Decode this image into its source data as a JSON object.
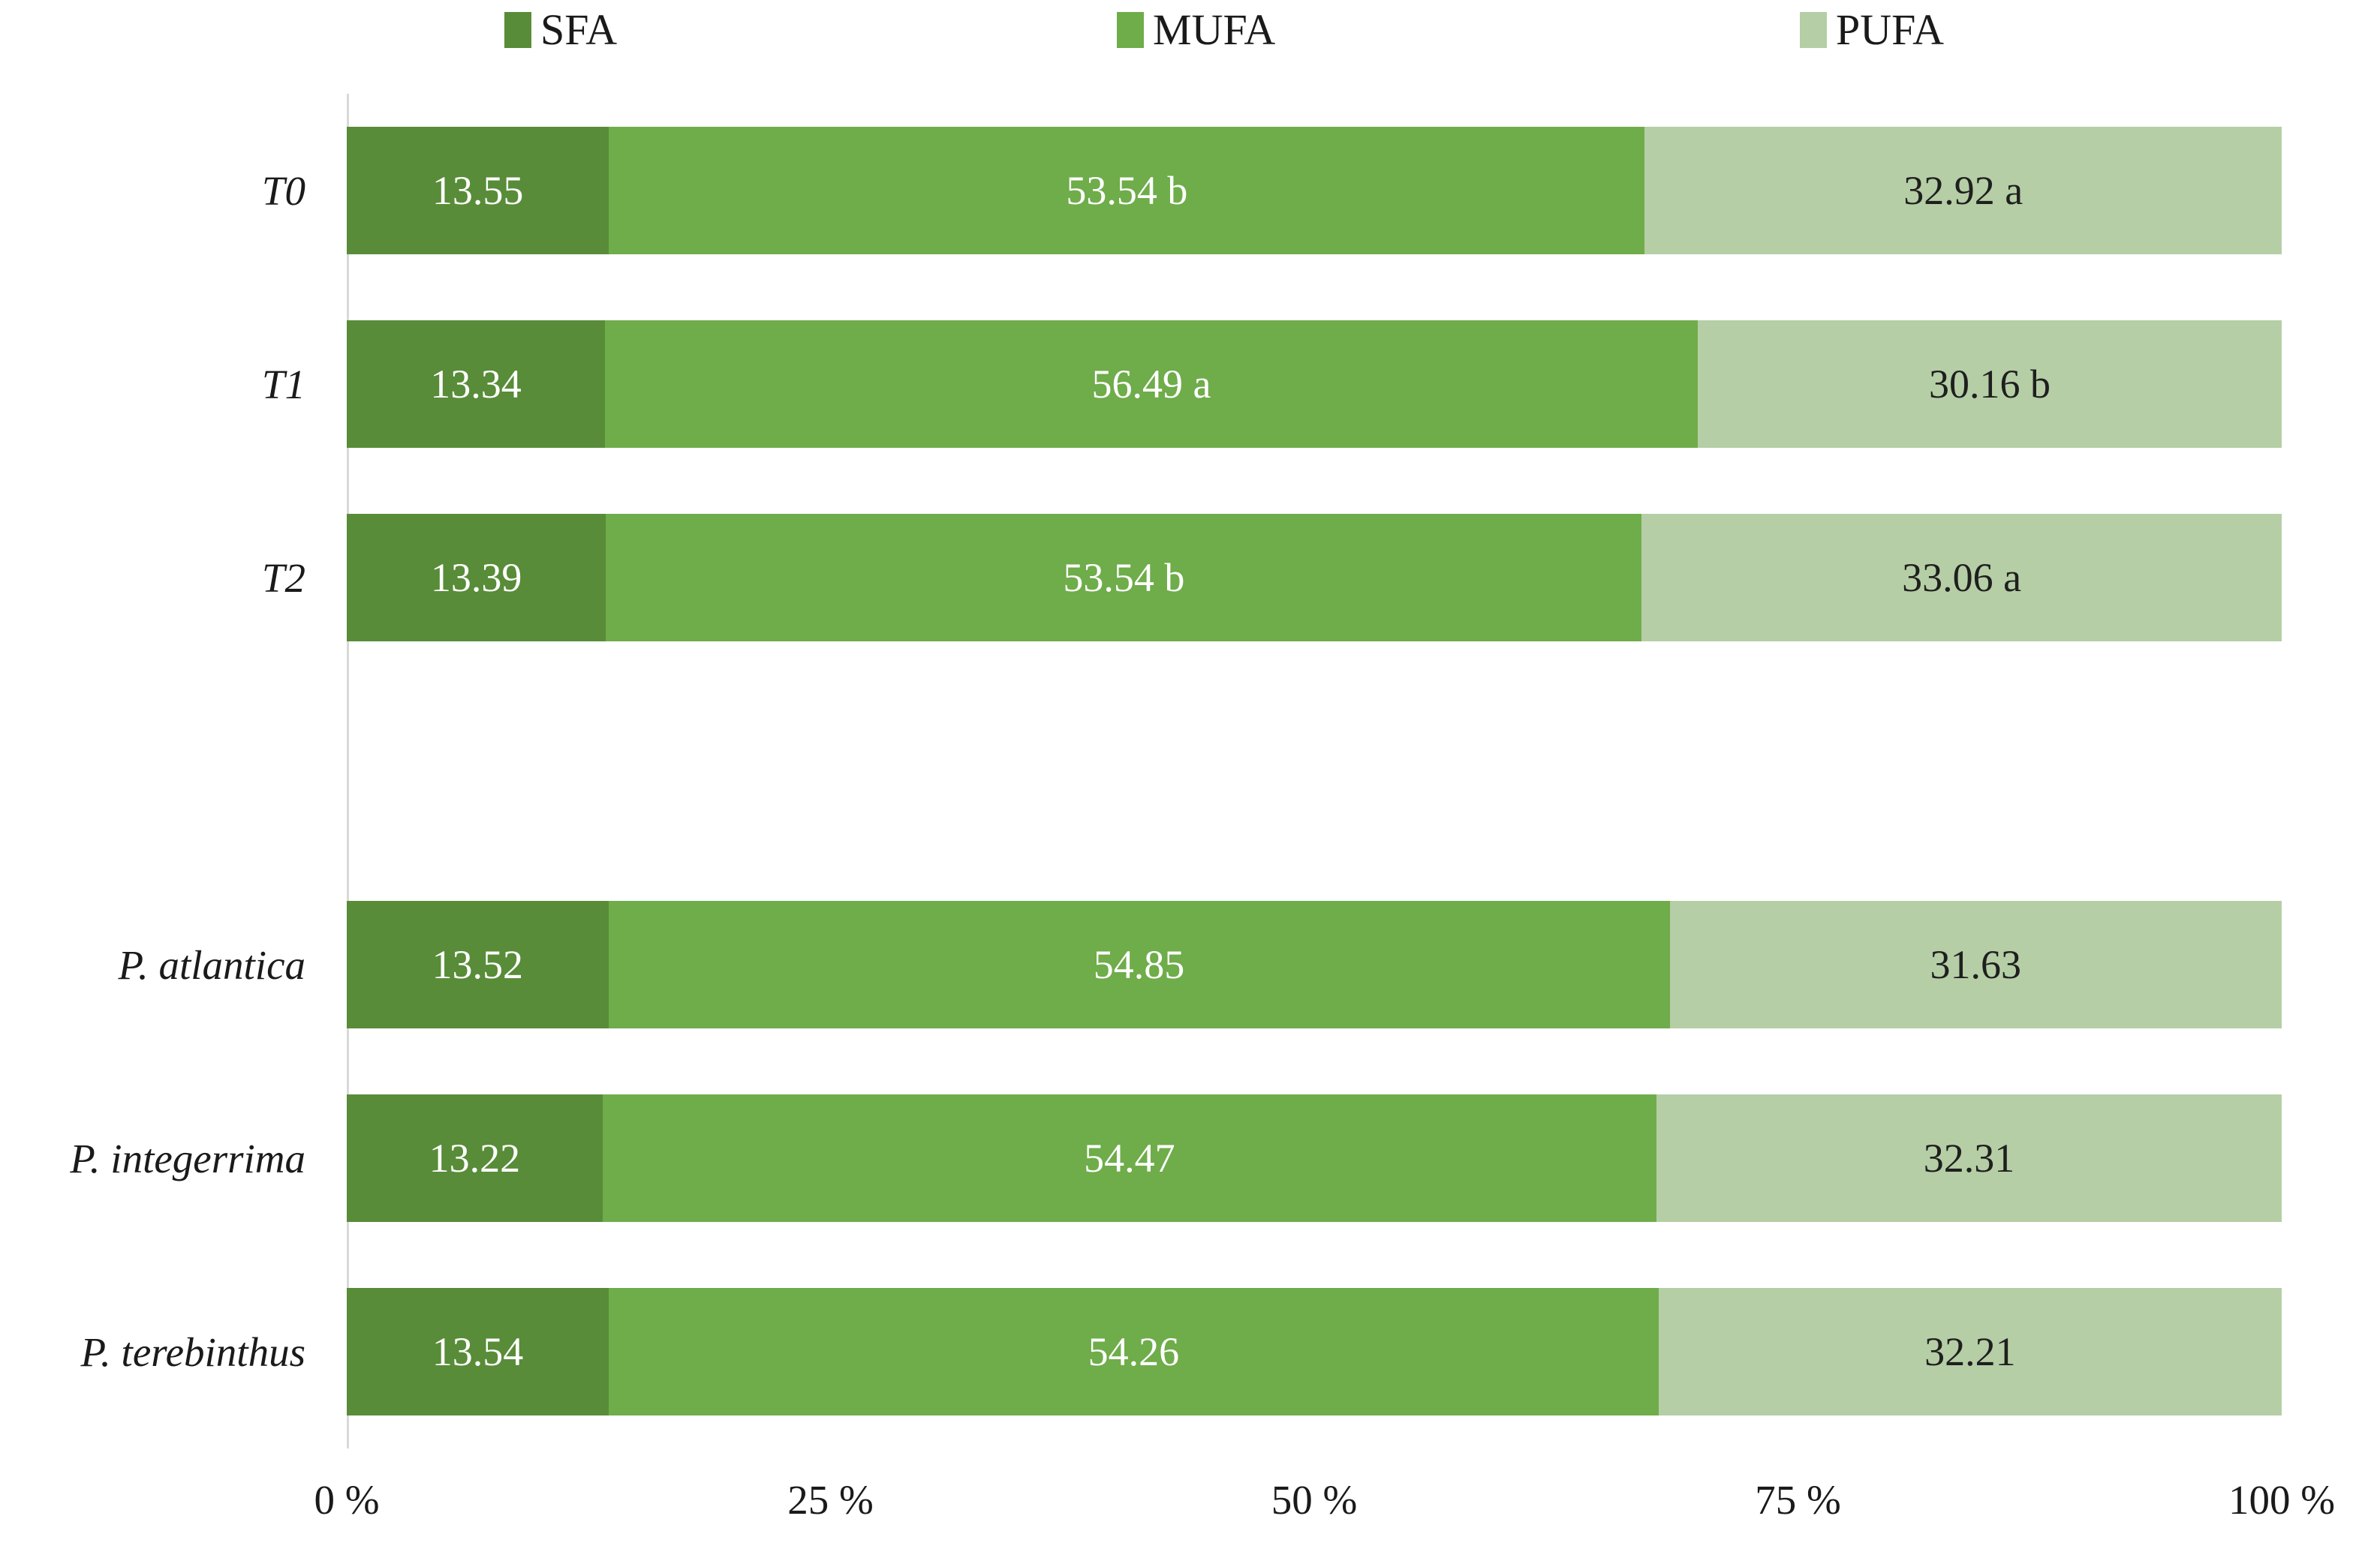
{
  "chart_data": {
    "type": "bar",
    "subtype": "horizontal-stacked-100pct",
    "title": "",
    "xlabel": "",
    "ylabel": "",
    "xlim": [
      0,
      100
    ],
    "grid": false,
    "legend_position": "top",
    "legend": [
      {
        "name": "SFA",
        "color": "#588C38"
      },
      {
        "name": "MUFA",
        "color": "#6FAC4A"
      },
      {
        "name": "PUFA",
        "color": "#B5CEA5"
      }
    ],
    "colors": {
      "sfa": "#588C38",
      "mufa": "#6FAC4A",
      "pufa": "#B5CEA5",
      "label_on_dark": "#FFFFFF",
      "label_on_light": "#1F1F1F",
      "axis_line": "#D9D9D9"
    },
    "categories": [
      "T0",
      "T1",
      "T2",
      "P. atlantica",
      "P. integerrima",
      "P. terebinthus"
    ],
    "series": [
      {
        "name": "SFA",
        "values": [
          13.55,
          13.34,
          13.39,
          13.52,
          13.22,
          13.54
        ]
      },
      {
        "name": "MUFA",
        "values": [
          53.54,
          56.49,
          53.54,
          54.85,
          54.47,
          54.26
        ]
      },
      {
        "name": "PUFA",
        "values": [
          32.92,
          30.16,
          33.06,
          31.63,
          32.31,
          32.21
        ]
      }
    ],
    "rows": [
      {
        "category": "T0",
        "sfa": {
          "value": 13.55,
          "label": "13.55"
        },
        "mufa": {
          "value": 53.54,
          "label": "53.54 b"
        },
        "pufa": {
          "value": 32.92,
          "label": "32.92 a"
        }
      },
      {
        "category": "T1",
        "sfa": {
          "value": 13.34,
          "label": "13.34"
        },
        "mufa": {
          "value": 56.49,
          "label": "56.49 a"
        },
        "pufa": {
          "value": 30.16,
          "label": "30.16 b"
        }
      },
      {
        "category": "T2",
        "sfa": {
          "value": 13.39,
          "label": "13.39"
        },
        "mufa": {
          "value": 53.54,
          "label": "53.54 b"
        },
        "pufa": {
          "value": 33.06,
          "label": "33.06 a"
        }
      },
      {
        "category": "P. atlantica",
        "sfa": {
          "value": 13.52,
          "label": "13.52"
        },
        "mufa": {
          "value": 54.85,
          "label": "54.85"
        },
        "pufa": {
          "value": 31.63,
          "label": "31.63"
        }
      },
      {
        "category": "P. integerrima",
        "sfa": {
          "value": 13.22,
          "label": "13.22"
        },
        "mufa": {
          "value": 54.47,
          "label": "54.47"
        },
        "pufa": {
          "value": 32.31,
          "label": "32.31"
        }
      },
      {
        "category": "P. terebinthus",
        "sfa": {
          "value": 13.54,
          "label": "13.54"
        },
        "mufa": {
          "value": 54.26,
          "label": "54.26"
        },
        "pufa": {
          "value": 32.21,
          "label": "32.21"
        }
      }
    ],
    "group_gap_after_row": 2,
    "x_ticks": [
      {
        "label": "0 %",
        "value": 0
      },
      {
        "label": "25 %",
        "value": 25
      },
      {
        "label": "50 %",
        "value": 50
      },
      {
        "label": "75 %",
        "value": 75
      },
      {
        "label": "100 %",
        "value": 100
      }
    ]
  }
}
